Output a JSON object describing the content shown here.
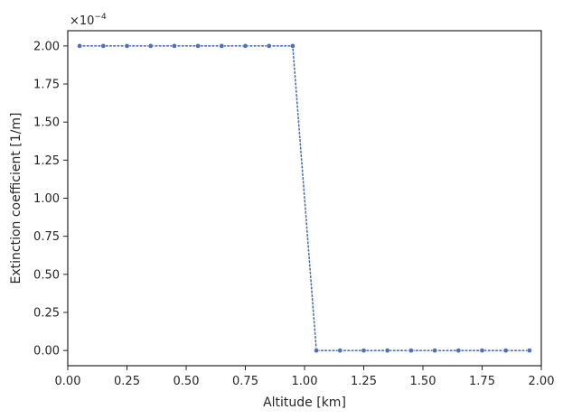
{
  "chart_data": {
    "type": "line",
    "xlabel": "Altitude [km]",
    "ylabel": "Extinction coefficient [1/m]",
    "y_offset_base": "×10",
    "y_offset_exp": "−4",
    "xlim": [
      0.0,
      2.0
    ],
    "ylim": [
      -0.1,
      2.1
    ],
    "x_ticks": [
      "0.00",
      "0.25",
      "0.50",
      "0.75",
      "1.00",
      "1.25",
      "1.50",
      "1.75",
      "2.00"
    ],
    "y_ticks": [
      "0.00",
      "0.25",
      "0.50",
      "0.75",
      "1.00",
      "1.25",
      "1.50",
      "1.75",
      "2.00"
    ],
    "grid": false,
    "series": [
      {
        "color": "#4c72b0",
        "line_style": "dotted",
        "marker": "circle",
        "x": [
          0.05,
          0.15,
          0.25,
          0.35,
          0.45,
          0.55,
          0.65,
          0.75,
          0.85,
          0.95,
          1.05,
          1.15,
          1.25,
          1.35,
          1.45,
          1.55,
          1.65,
          1.75,
          1.85,
          1.95
        ],
        "y": [
          2.0,
          2.0,
          2.0,
          2.0,
          2.0,
          2.0,
          2.0,
          2.0,
          2.0,
          2.0,
          0.0,
          0.0,
          0.0,
          0.0,
          0.0,
          0.0,
          0.0,
          0.0,
          0.0,
          0.0
        ]
      }
    ]
  }
}
